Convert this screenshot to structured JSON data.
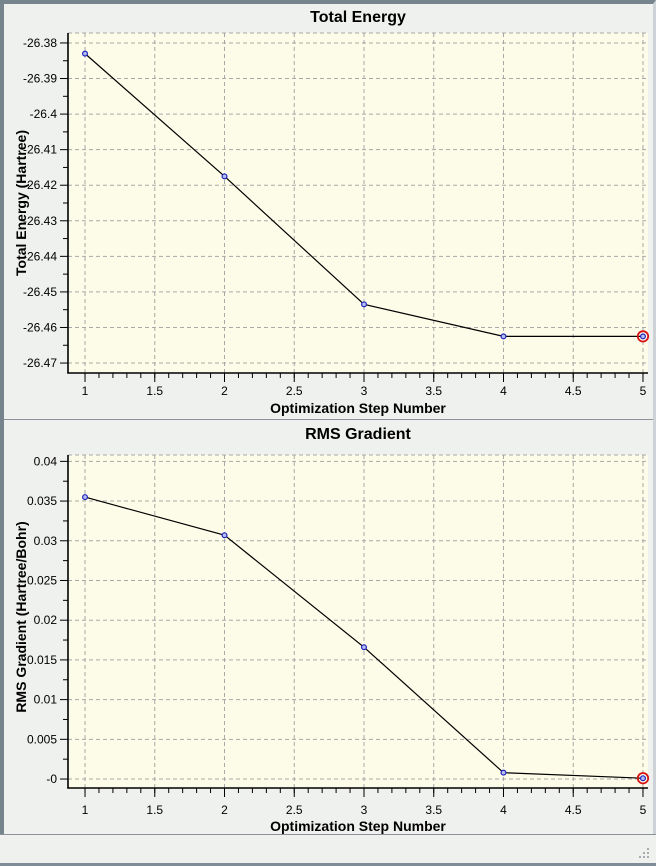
{
  "window": {
    "frame_color": "#76848e",
    "background": "#eff1ee",
    "status_bar_text": ""
  },
  "chart_data": [
    {
      "type": "line",
      "title": "Total Energy",
      "xlabel": "Optimization Step Number",
      "ylabel": "Total Energy (Hartree)",
      "x": [
        1,
        2,
        3,
        4,
        5
      ],
      "y": [
        -26.383,
        -26.4175,
        -26.4535,
        -26.4625,
        -26.4625
      ],
      "x_tick_values": [
        1,
        1.5,
        2,
        2.5,
        3,
        3.5,
        4,
        4.5,
        5
      ],
      "x_tick_labels": [
        "1",
        "1.5",
        "2",
        "2.5",
        "3",
        "3.5",
        "4",
        "4.5",
        "5"
      ],
      "y_tick_values": [
        -26.38,
        -26.39,
        -26.4,
        -26.41,
        -26.42,
        -26.43,
        -26.44,
        -26.45,
        -26.46,
        -26.47
      ],
      "y_tick_labels": [
        "-26.38",
        "-26.39",
        "-26.4",
        "-26.41",
        "-26.42",
        "-26.43",
        "-26.44",
        "-26.45",
        "-26.46",
        "-26.47"
      ],
      "xlim": [
        0.878,
        5.036
      ],
      "ylim": [
        -26.4728,
        -26.3772
      ],
      "x_minor_step": 0.1,
      "grid": true,
      "legend": null,
      "highlight_last_point": true,
      "style": {
        "plot_bg": "#fcfce8",
        "grid_color": "#a8a8a8",
        "line_color": "#000000",
        "marker_fill": "#b4c0f2",
        "marker_stroke": "#2222bb",
        "highlight_color": "#d81414"
      }
    },
    {
      "type": "line",
      "title": "RMS Gradient",
      "xlabel": "Optimization Step Number",
      "ylabel": "RMS Gradient (Hartree/Bohr)",
      "x": [
        1,
        2,
        3,
        4,
        5
      ],
      "y": [
        0.0355,
        0.0307,
        0.0166,
        0.0008,
        0.0001
      ],
      "x_tick_values": [
        1,
        1.5,
        2,
        2.5,
        3,
        3.5,
        4,
        4.5,
        5
      ],
      "x_tick_labels": [
        "1",
        "1.5",
        "2",
        "2.5",
        "3",
        "3.5",
        "4",
        "4.5",
        "5"
      ],
      "y_tick_values": [
        0.04,
        0.035,
        0.03,
        0.025,
        0.02,
        0.015,
        0.01,
        0.005,
        0
      ],
      "y_tick_labels": [
        "0.04",
        "0.035",
        "0.03",
        "0.025",
        "0.02",
        "0.015",
        "0.01",
        "0.005",
        "-0"
      ],
      "xlim": [
        0.878,
        5.036
      ],
      "ylim": [
        -0.00113,
        0.0408
      ],
      "x_minor_step": 0.1,
      "grid": true,
      "legend": null,
      "highlight_last_point": true,
      "style": {
        "plot_bg": "#fcfce8",
        "grid_color": "#a8a8a8",
        "line_color": "#000000",
        "marker_fill": "#b4c0f2",
        "marker_stroke": "#2222bb",
        "highlight_color": "#d81414"
      }
    }
  ]
}
